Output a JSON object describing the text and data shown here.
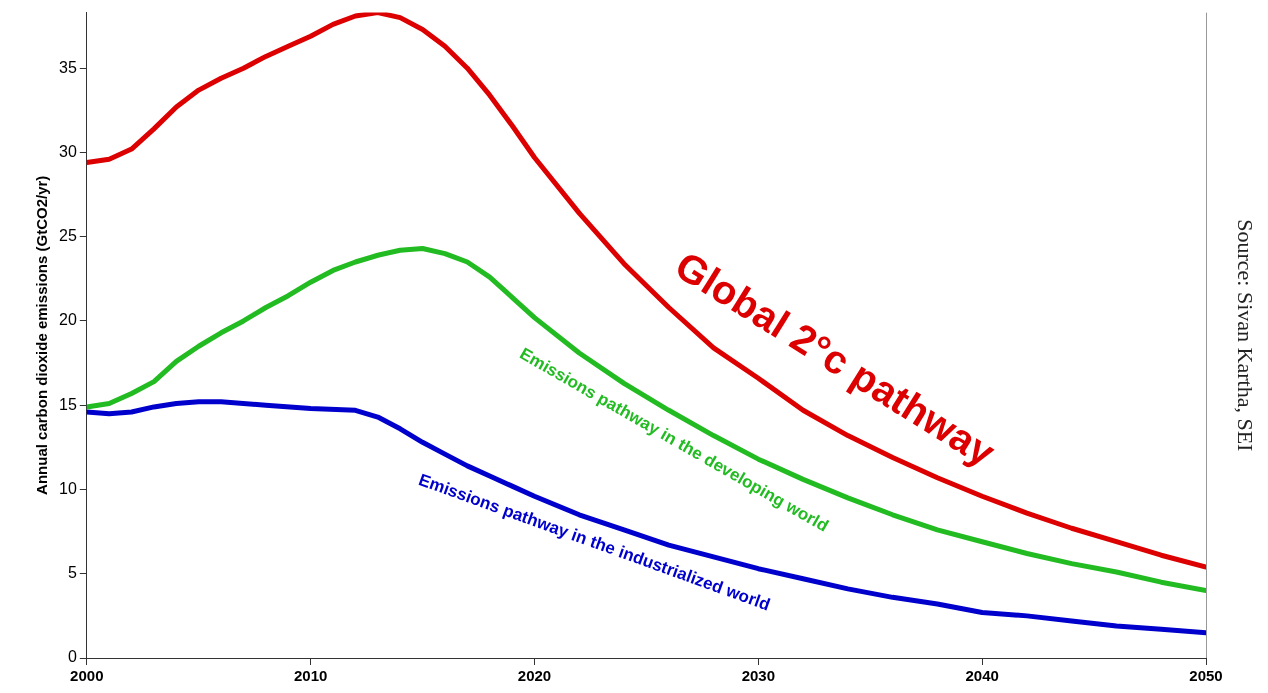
{
  "chart_data": {
    "type": "line",
    "ylabel": "Annual carbon dioxide emissions (GtCO2/yr)",
    "xlim": [
      2000,
      2050
    ],
    "xticks": [
      2000,
      2010,
      2020,
      2030,
      2040,
      2050
    ],
    "ylim": [
      0,
      38.3
    ],
    "yticks": [
      0,
      5,
      10,
      15,
      20,
      25,
      30,
      35
    ],
    "grid": false,
    "legend": false,
    "marker": "none",
    "line_style": "solid",
    "annotations": [
      "Source: Sivan Kartha, SEI"
    ],
    "series": [
      {
        "name": "Global 2°c pathway",
        "color": "#dd0000",
        "x": [
          2000,
          2001,
          2002,
          2003,
          2004,
          2005,
          2006,
          2007,
          2008,
          2009,
          2010,
          2011,
          2012,
          2013,
          2014,
          2015,
          2016,
          2017,
          2018,
          2019,
          2020,
          2022,
          2024,
          2026,
          2028,
          2030,
          2032,
          2034,
          2036,
          2038,
          2040,
          2042,
          2044,
          2046,
          2048,
          2050
        ],
        "values": [
          29.4,
          29.6,
          30.2,
          31.4,
          32.7,
          33.7,
          34.4,
          35.0,
          35.7,
          36.3,
          36.9,
          37.6,
          38.1,
          38.3,
          38.0,
          37.3,
          36.3,
          35.0,
          33.4,
          31.6,
          29.7,
          26.4,
          23.4,
          20.8,
          18.4,
          16.6,
          14.7,
          13.2,
          11.9,
          10.7,
          9.6,
          8.6,
          7.7,
          6.9,
          6.1,
          5.4
        ]
      },
      {
        "name": "Emissions pathway in the developing world",
        "color": "#22bb22",
        "x": [
          2000,
          2001,
          2002,
          2003,
          2004,
          2005,
          2006,
          2007,
          2008,
          2009,
          2010,
          2011,
          2012,
          2013,
          2014,
          2015,
          2016,
          2017,
          2018,
          2019,
          2020,
          2022,
          2024,
          2026,
          2028,
          2030,
          2032,
          2034,
          2036,
          2038,
          2040,
          2042,
          2044,
          2046,
          2048,
          2050
        ],
        "values": [
          14.9,
          15.1,
          15.7,
          16.4,
          17.6,
          18.5,
          19.3,
          20.0,
          20.8,
          21.5,
          22.3,
          23.0,
          23.5,
          23.9,
          24.2,
          24.3,
          24.0,
          23.5,
          22.6,
          21.4,
          20.2,
          18.1,
          16.3,
          14.7,
          13.2,
          11.8,
          10.6,
          9.5,
          8.5,
          7.6,
          6.9,
          6.2,
          5.6,
          5.1,
          4.5,
          4.0
        ]
      },
      {
        "name": "Emissions pathway in the industrialized world",
        "color": "#0000cc",
        "x": [
          2000,
          2001,
          2002,
          2003,
          2004,
          2005,
          2006,
          2008,
          2010,
          2012,
          2013,
          2014,
          2015,
          2016,
          2017,
          2018,
          2019,
          2020,
          2022,
          2024,
          2026,
          2028,
          2030,
          2032,
          2034,
          2036,
          2038,
          2040,
          2042,
          2044,
          2046,
          2048,
          2050
        ],
        "values": [
          14.6,
          14.5,
          14.6,
          14.9,
          15.1,
          15.2,
          15.2,
          15.0,
          14.8,
          14.7,
          14.3,
          13.6,
          12.8,
          12.1,
          11.4,
          10.8,
          10.2,
          9.6,
          8.5,
          7.6,
          6.7,
          6.0,
          5.3,
          4.7,
          4.1,
          3.6,
          3.2,
          2.7,
          2.5,
          2.2,
          1.9,
          1.7,
          1.5
        ]
      }
    ]
  }
}
